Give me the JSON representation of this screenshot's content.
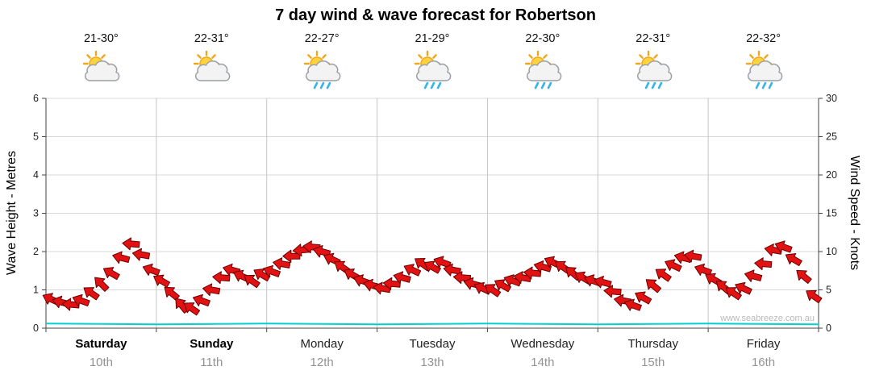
{
  "title": "7 day wind & wave forecast for Robertson",
  "watermark": "www.seabreeze.com.au",
  "axes": {
    "left_label": "Wave Height - Metres",
    "right_label": "Wind Speed - Knots"
  },
  "days": [
    {
      "name": "Saturday",
      "date": "10th",
      "temp": "21-30°",
      "icon": "sun-cloud",
      "bold": true
    },
    {
      "name": "Sunday",
      "date": "11th",
      "temp": "22-31°",
      "icon": "sun-cloud",
      "bold": true
    },
    {
      "name": "Monday",
      "date": "12th",
      "temp": "22-27°",
      "icon": "sun-cloud-rain",
      "bold": false
    },
    {
      "name": "Tuesday",
      "date": "13th",
      "temp": "21-29°",
      "icon": "sun-cloud-rain",
      "bold": false
    },
    {
      "name": "Wednesday",
      "date": "14th",
      "temp": "22-30°",
      "icon": "sun-cloud-rain",
      "bold": false
    },
    {
      "name": "Thursday",
      "date": "15th",
      "temp": "22-31°",
      "icon": "sun-cloud-rain",
      "bold": false
    },
    {
      "name": "Friday",
      "date": "16th",
      "temp": "22-32°",
      "icon": "sun-cloud-rain",
      "bold": false
    }
  ],
  "chart_data": {
    "type": "line",
    "title": "7 day wind & wave forecast for Robertson",
    "categories": [
      "Saturday 10th",
      "Sunday 11th",
      "Monday 12th",
      "Tuesday 13th",
      "Wednesday 14th",
      "Thursday 15th",
      "Friday 16th"
    ],
    "left_axis": {
      "label": "Wave Height - Metres",
      "range": [
        0,
        6
      ],
      "ticks": [
        0,
        1,
        2,
        3,
        4,
        5,
        6
      ]
    },
    "right_axis": {
      "label": "Wind Speed - Knots",
      "range": [
        0,
        30
      ],
      "ticks": [
        0,
        5,
        10,
        15,
        20,
        25,
        30
      ]
    },
    "grid": true,
    "points_per_day": 11,
    "series": [
      {
        "name": "Wind Speed",
        "unit": "knots",
        "style": "wind-barbs",
        "color": "#e31212",
        "values": [
          3.8,
          3.4,
          3.1,
          3.6,
          4.6,
          5.8,
          7.2,
          9.2,
          11.0,
          9.6,
          7.6,
          6.2,
          4.6,
          3.0,
          2.6,
          3.6,
          5.0,
          6.6,
          7.6,
          6.8,
          6.2,
          7.0,
          7.4,
          8.4,
          9.4,
          10.2,
          10.6,
          10.0,
          9.0,
          8.0,
          7.0,
          6.2,
          5.6,
          5.2,
          5.8,
          6.6,
          7.6,
          8.4,
          8.0,
          8.6,
          7.6,
          6.6,
          5.8,
          5.2,
          5.0,
          5.6,
          6.2,
          6.6,
          7.2,
          8.0,
          8.6,
          8.0,
          7.2,
          6.6,
          6.2,
          6.0,
          4.8,
          3.6,
          3.0,
          4.0,
          5.6,
          7.0,
          8.2,
          9.2,
          9.4,
          7.6,
          6.4,
          5.4,
          4.6,
          5.2,
          6.8,
          8.4,
          10.2,
          10.6,
          9.0,
          6.8,
          4.2
        ],
        "directions_deg": [
          205,
          195,
          185,
          200,
          215,
          225,
          210,
          195,
          185,
          190,
          200,
          210,
          220,
          230,
          215,
          200,
          190,
          185,
          195,
          205,
          215,
          210,
          200,
          190,
          180,
          175,
          185,
          195,
          205,
          215,
          210,
          200,
          195,
          190,
          185,
          195,
          205,
          215,
          210,
          200,
          190,
          185,
          195,
          205,
          215,
          210,
          200,
          190,
          185,
          195,
          205,
          215,
          220,
          210,
          200,
          195,
          185,
          190,
          200,
          210,
          220,
          215,
          205,
          195,
          190,
          200,
          210,
          220,
          215,
          205,
          195,
          185,
          190,
          200,
          210,
          220,
          215
        ]
      },
      {
        "name": "Wave Height",
        "unit": "metres",
        "style": "line",
        "color": "#00d2d2",
        "values": [
          0.12,
          0.1,
          0.12,
          0.1,
          0.12,
          0.1,
          0.12,
          0.1
        ]
      }
    ]
  }
}
